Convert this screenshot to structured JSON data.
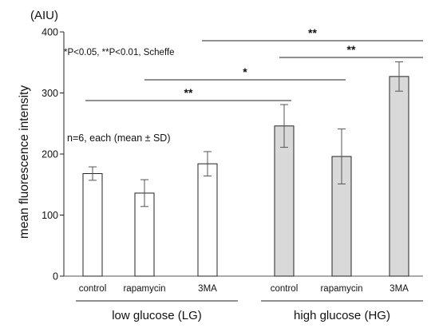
{
  "chart_data": {
    "type": "bar",
    "unit_label": "(AIU)",
    "ylabel": "mean fluorescence intensity",
    "xlabel": "",
    "ylim": [
      0,
      400
    ],
    "yticks": [
      0,
      100,
      200,
      300,
      400
    ],
    "grid": false,
    "significance_note": "*P<0.05, **P<0.01, Scheffe",
    "sample_note": "n=6, each (mean ± SD)",
    "categories": [
      "control",
      "rapamycin",
      "3MA",
      "control",
      "rapamycin",
      "3MA"
    ],
    "groups": [
      {
        "name": "low glucose (LG)",
        "color": "#ffffff",
        "bars": [
          {
            "label": "control",
            "mean": 168,
            "sd": 11
          },
          {
            "label": "rapamycin",
            "mean": 136,
            "sd": 22
          },
          {
            "label": "3MA",
            "mean": 184,
            "sd": 20
          }
        ]
      },
      {
        "name": "high glucose (HG)",
        "color": "#d9d9d9",
        "bars": [
          {
            "label": "control",
            "mean": 246,
            "sd": 35
          },
          {
            "label": "rapamycin",
            "mean": 196,
            "sd": 45
          },
          {
            "label": "3MA",
            "mean": 327,
            "sd": 24
          }
        ]
      }
    ],
    "comparisons": [
      {
        "from": 0,
        "to": 3,
        "stars": "**"
      },
      {
        "from": 1,
        "to": 4,
        "stars": "*"
      },
      {
        "from": 2,
        "to": 5,
        "stars": "**"
      },
      {
        "from": 3,
        "to": 5,
        "stars": "**"
      }
    ]
  }
}
